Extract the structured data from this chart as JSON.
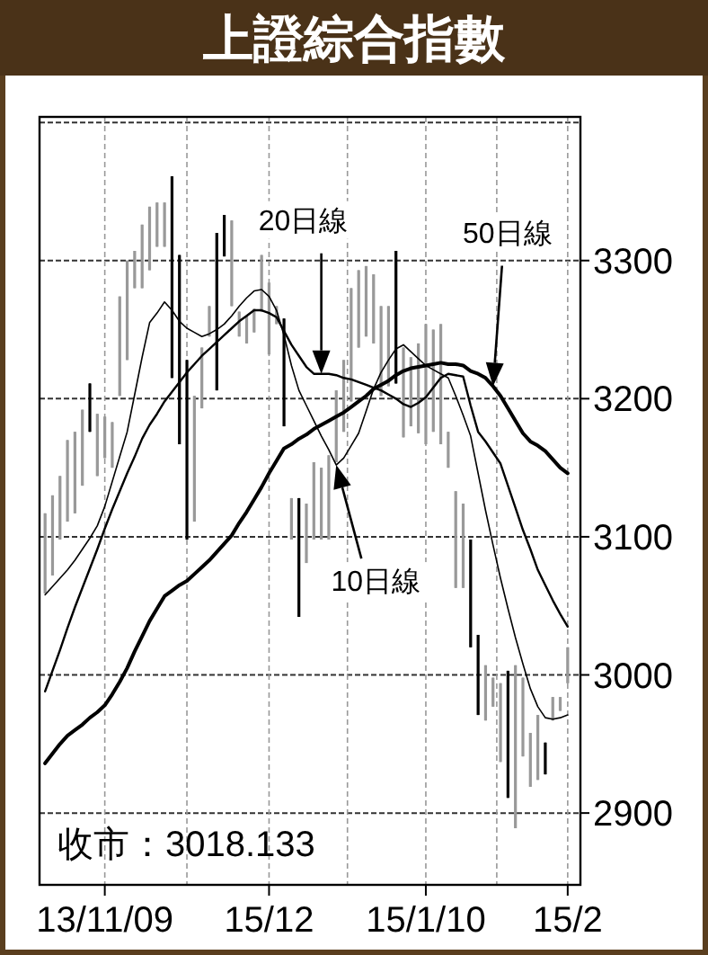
{
  "chart_data": {
    "type": "candlestick",
    "title": "上證綜合指數",
    "categories": [
      null,
      null,
      null,
      null,
      null,
      null,
      null,
      null,
      "13/11/09",
      null,
      null,
      null,
      null,
      null,
      null,
      null,
      null,
      null,
      null,
      null,
      null,
      null,
      null,
      null,
      null,
      null,
      null,
      null,
      null,
      null,
      "15/12",
      null,
      null,
      null,
      null,
      null,
      null,
      null,
      null,
      null,
      null,
      null,
      null,
      null,
      null,
      null,
      null,
      null,
      null,
      null,
      null,
      "15/1/10",
      null,
      null,
      null,
      null,
      null,
      null,
      null,
      null,
      null,
      null,
      null,
      null,
      null,
      null,
      null,
      null,
      null,
      null,
      "15/2"
    ],
    "ohlc": [
      [
        3059,
        3117,
        3059,
        3117
      ],
      [
        3072,
        3130,
        3072,
        3130
      ],
      [
        3098,
        3144,
        3098,
        3144
      ],
      [
        3111,
        3170,
        3111,
        3170
      ],
      [
        3117,
        3176,
        3117,
        3176
      ],
      [
        3137,
        3192,
        3137,
        3192
      ],
      [
        3211,
        3211,
        3176,
        3176
      ],
      [
        3144,
        3189,
        3144,
        3189
      ],
      [
        3157,
        3187,
        3157,
        3187
      ],
      [
        3150,
        3183,
        3150,
        3183
      ],
      [
        3202,
        3274,
        3202,
        3274
      ],
      [
        3228,
        3300,
        3228,
        3300
      ],
      [
        3280,
        3307,
        3280,
        3307
      ],
      [
        3280,
        3326,
        3280,
        3326
      ],
      [
        3293,
        3339,
        3293,
        3339
      ],
      [
        3310,
        3342,
        3310,
        3342
      ],
      [
        3310,
        3342,
        3310,
        3342
      ],
      [
        3361,
        3361,
        3215,
        3215
      ],
      [
        3304,
        3304,
        3167,
        3167
      ],
      [
        3228,
        3228,
        3098,
        3098
      ],
      [
        3111,
        3202,
        3111,
        3202
      ],
      [
        3193,
        3237,
        3193,
        3237
      ],
      [
        3245,
        3267,
        3245,
        3267
      ],
      [
        3320,
        3320,
        3206,
        3206
      ],
      [
        3333,
        3333,
        3303,
        3303
      ],
      [
        3267,
        3329,
        3267,
        3329
      ],
      [
        3245,
        3263,
        3245,
        3263
      ],
      [
        3240,
        3260,
        3240,
        3260
      ],
      [
        3248,
        3265,
        3248,
        3265
      ],
      [
        3263,
        3304,
        3263,
        3304
      ],
      [
        3232,
        3284,
        3232,
        3284
      ],
      [
        3254,
        3267,
        3254,
        3267
      ],
      [
        3258,
        3258,
        3180,
        3180
      ],
      [
        3098,
        3128,
        3098,
        3128
      ],
      [
        3128,
        3128,
        3042,
        3042
      ],
      [
        3081,
        3124,
        3081,
        3124
      ],
      [
        3098,
        3154,
        3098,
        3154
      ],
      [
        3098,
        3150,
        3098,
        3150
      ],
      [
        3098,
        3159,
        3098,
        3159
      ],
      [
        3154,
        3206,
        3154,
        3206
      ],
      [
        3176,
        3228,
        3176,
        3228
      ],
      [
        3198,
        3280,
        3198,
        3280
      ],
      [
        3237,
        3293,
        3237,
        3293
      ],
      [
        3245,
        3296,
        3245,
        3296
      ],
      [
        3240,
        3290,
        3240,
        3290
      ],
      [
        3202,
        3267,
        3202,
        3267
      ],
      [
        3209,
        3267,
        3209,
        3267
      ],
      [
        3307,
        3307,
        3211,
        3211
      ],
      [
        3172,
        3237,
        3172,
        3237
      ],
      [
        3180,
        3230,
        3180,
        3230
      ],
      [
        3175,
        3240,
        3175,
        3240
      ],
      [
        3167,
        3254,
        3167,
        3254
      ],
      [
        3176,
        3250,
        3176,
        3250
      ],
      [
        3167,
        3254,
        3167,
        3254
      ],
      [
        3150,
        3176,
        3150,
        3176
      ],
      [
        3063,
        3133,
        3063,
        3133
      ],
      [
        3063,
        3124,
        3063,
        3124
      ],
      [
        3098,
        3098,
        3020,
        3020
      ],
      [
        3029,
        3029,
        2971,
        2971
      ],
      [
        2967,
        3007,
        2967,
        3007
      ],
      [
        2977,
        2998,
        2977,
        2998
      ],
      [
        2937,
        2994,
        2937,
        2994
      ],
      [
        3003,
        3003,
        2911,
        2911
      ],
      [
        2889,
        3007,
        2889,
        3007
      ],
      [
        2941,
        2998,
        2941,
        2998
      ],
      [
        2919,
        2958,
        2919,
        2958
      ],
      [
        2924,
        2971,
        2924,
        2971
      ],
      [
        2951,
        2951,
        2928,
        2928
      ],
      [
        2967,
        2984,
        2967,
        2984
      ],
      [
        2974,
        2984,
        2974,
        2984
      ],
      [
        2994,
        3020,
        2994,
        3020
      ]
    ],
    "colors": [
      "#999999",
      "#999999",
      "#999999",
      "#999999",
      "#999999",
      "#999999",
      "#000000",
      "#999999",
      "#999999",
      "#999999",
      "#999999",
      "#999999",
      "#999999",
      "#999999",
      "#999999",
      "#999999",
      "#999999",
      "#000000",
      "#000000",
      "#000000",
      "#999999",
      "#999999",
      "#999999",
      "#000000",
      "#000000",
      "#999999",
      "#999999",
      "#999999",
      "#999999",
      "#999999",
      "#999999",
      "#999999",
      "#000000",
      "#999999",
      "#000000",
      "#999999",
      "#999999",
      "#999999",
      "#999999",
      "#999999",
      "#999999",
      "#999999",
      "#999999",
      "#999999",
      "#999999",
      "#999999",
      "#999999",
      "#000000",
      "#999999",
      "#999999",
      "#999999",
      "#999999",
      "#999999",
      "#999999",
      "#999999",
      "#999999",
      "#999999",
      "#000000",
      "#000000",
      "#999999",
      "#999999",
      "#999999",
      "#000000",
      "#999999",
      "#999999",
      "#999999",
      "#999999",
      "#000000",
      "#999999",
      "#999999",
      "#999999"
    ],
    "series": [
      {
        "name": "10日線",
        "type": "line",
        "color": "#000000",
        "values": [
          3058,
          3064,
          3070,
          3076,
          3083,
          3091,
          3099,
          3108,
          3122,
          3140,
          3158,
          3176,
          3203,
          3230,
          3255,
          3262,
          3270,
          3264,
          3256,
          3251,
          3248,
          3245,
          3247,
          3250,
          3254,
          3260,
          3267,
          3273,
          3278,
          3279,
          3274,
          3264,
          3246,
          3224,
          3206,
          3195,
          3184,
          3173,
          3163,
          3152,
          3157,
          3166,
          3175,
          3191,
          3207,
          3219,
          3228,
          3236,
          3239,
          3234,
          3229,
          3224,
          3221,
          3218,
          3215,
          3202,
          3188,
          3173,
          3146,
          3119,
          3094,
          3070,
          3048,
          3027,
          3008,
          2990,
          2977,
          2969,
          2968,
          2969,
          2971
        ]
      },
      {
        "name": "20日線",
        "type": "line",
        "color": "#000000",
        "values": [
          2988,
          3003,
          3018,
          3034,
          3049,
          3063,
          3077,
          3091,
          3106,
          3120,
          3133,
          3146,
          3158,
          3171,
          3181,
          3189,
          3198,
          3205,
          3212,
          3219,
          3225,
          3231,
          3236,
          3241,
          3246,
          3251,
          3256,
          3260,
          3264,
          3264,
          3262,
          3259,
          3249,
          3239,
          3231,
          3223,
          3218,
          3218,
          3218,
          3217,
          3215,
          3214,
          3212,
          3210,
          3208,
          3206,
          3203,
          3200,
          3196,
          3194,
          3197,
          3201,
          3208,
          3215,
          3218,
          3217,
          3216,
          3195,
          3176,
          3169,
          3161,
          3153,
          3137,
          3121,
          3105,
          3091,
          3076,
          3065,
          3054,
          3044,
          3035
        ]
      },
      {
        "name": "50日線",
        "type": "line",
        "color": "#000000",
        "values": [
          2936,
          2943,
          2950,
          2956,
          2960,
          2964,
          2969,
          2973,
          2978,
          2986,
          2995,
          3005,
          3017,
          3028,
          3039,
          3048,
          3057,
          3061,
          3065,
          3068,
          3073,
          3078,
          3083,
          3089,
          3095,
          3101,
          3110,
          3118,
          3127,
          3136,
          3146,
          3155,
          3164,
          3167,
          3171,
          3174,
          3178,
          3181,
          3184,
          3187,
          3190,
          3194,
          3198,
          3202,
          3207,
          3210,
          3213,
          3217,
          3220,
          3222,
          3223,
          3224,
          3225,
          3226,
          3225,
          3225,
          3224,
          3220,
          3218,
          3215,
          3209,
          3202,
          3193,
          3184,
          3175,
          3169,
          3166,
          3162,
          3156,
          3150,
          3146
        ]
      }
    ],
    "ylim": [
      2848,
      3404
    ],
    "yticks": [
      2900,
      3000,
      3100,
      3200,
      3300,
      {
        "value": 3400,
        "label": null
      }
    ],
    "grid": true,
    "annotations": [
      "收市：3018.133"
    ]
  }
}
